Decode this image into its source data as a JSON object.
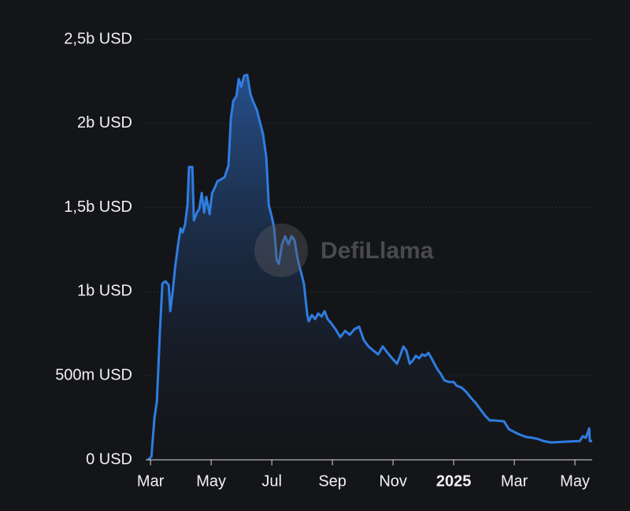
{
  "chart_data": {
    "type": "area",
    "watermark": "DefiLlama",
    "color": "#2f7de1",
    "x": [
      -0.08,
      0.03,
      0.13,
      0.21,
      0.31,
      0.39,
      0.49,
      0.6,
      0.65,
      0.73,
      0.81,
      0.91,
      0.99,
      1.06,
      1.14,
      1.22,
      1.27,
      1.38,
      1.43,
      1.53,
      1.61,
      1.69,
      1.77,
      1.84,
      1.95,
      2.03,
      2.1,
      2.21,
      2.31,
      2.44,
      2.57,
      2.65,
      2.73,
      2.83,
      2.91,
      2.99,
      3.09,
      3.19,
      3.3,
      3.4,
      3.51,
      3.61,
      3.71,
      3.82,
      3.9,
      4.0,
      4.08,
      4.16,
      4.23,
      4.34,
      4.44,
      4.55,
      4.65,
      4.75,
      4.86,
      4.96,
      5.06,
      5.17,
      5.22,
      5.32,
      5.43,
      5.53,
      5.64,
      5.74,
      5.84,
      5.95,
      6.1,
      6.26,
      6.42,
      6.57,
      6.73,
      6.88,
      7.04,
      7.19,
      7.35,
      7.51,
      7.66,
      7.82,
      7.97,
      8.13,
      8.23,
      8.34,
      8.44,
      8.55,
      8.65,
      8.75,
      8.86,
      8.96,
      9.06,
      9.17,
      9.27,
      9.38,
      9.48,
      9.58,
      9.69,
      9.84,
      10.0,
      10.1,
      10.26,
      10.42,
      10.57,
      10.73,
      10.88,
      11.04,
      11.19,
      11.35,
      11.66,
      11.82,
      11.97,
      12.18,
      12.39,
      12.6,
      12.81,
      12.96,
      13.22,
      13.74,
      14.16,
      14.26,
      14.36,
      14.47,
      14.49,
      14.57
    ],
    "values": [
      0,
      19,
      253,
      346,
      767,
      1048,
      1062,
      1039,
      884,
      1001,
      1142,
      1282,
      1376,
      1353,
      1400,
      1516,
      1741,
      1741,
      1423,
      1470,
      1493,
      1587,
      1470,
      1563,
      1460,
      1587,
      1610,
      1657,
      1666,
      1680,
      1750,
      2031,
      2134,
      2162,
      2265,
      2218,
      2284,
      2289,
      2171,
      2125,
      2078,
      2008,
      1937,
      1797,
      1516,
      1446,
      1376,
      1189,
      1165,
      1282,
      1329,
      1282,
      1329,
      1306,
      1189,
      1118,
      1048,
      861,
      824,
      861,
      837,
      870,
      852,
      884,
      837,
      814,
      777,
      730,
      767,
      744,
      777,
      791,
      711,
      674,
      650,
      627,
      674,
      636,
      604,
      571,
      618,
      674,
      650,
      571,
      590,
      618,
      604,
      627,
      618,
      636,
      604,
      566,
      533,
      510,
      473,
      463,
      463,
      440,
      430,
      402,
      369,
      337,
      300,
      262,
      234,
      234,
      229,
      183,
      168,
      150,
      136,
      131,
      122,
      112,
      103,
      108,
      112,
      140,
      131,
      187,
      112,
      112
    ],
    "xlim": [
      -0.16,
      14.57
    ],
    "ylim": [
      0,
      2500
    ],
    "xticks": [
      {
        "value": 0,
        "label": "Mar"
      },
      {
        "value": 2,
        "label": "May"
      },
      {
        "value": 4,
        "label": "Jul"
      },
      {
        "value": 6,
        "label": "Sep"
      },
      {
        "value": 8,
        "label": "Nov"
      },
      {
        "value": 10,
        "label": "2025",
        "bold": true
      },
      {
        "value": 12,
        "label": "Mar"
      },
      {
        "value": 14,
        "label": "May"
      }
    ],
    "yticks": [
      {
        "value": 0,
        "label": "0 USD"
      },
      {
        "value": 500,
        "label": "500m USD"
      },
      {
        "value": 1000,
        "label": "1b USD"
      },
      {
        "value": 1500,
        "label": "1,5b USD"
      },
      {
        "value": 2000,
        "label": "2b USD"
      },
      {
        "value": 2500,
        "label": "2,5b USD"
      }
    ],
    "grid": true
  }
}
